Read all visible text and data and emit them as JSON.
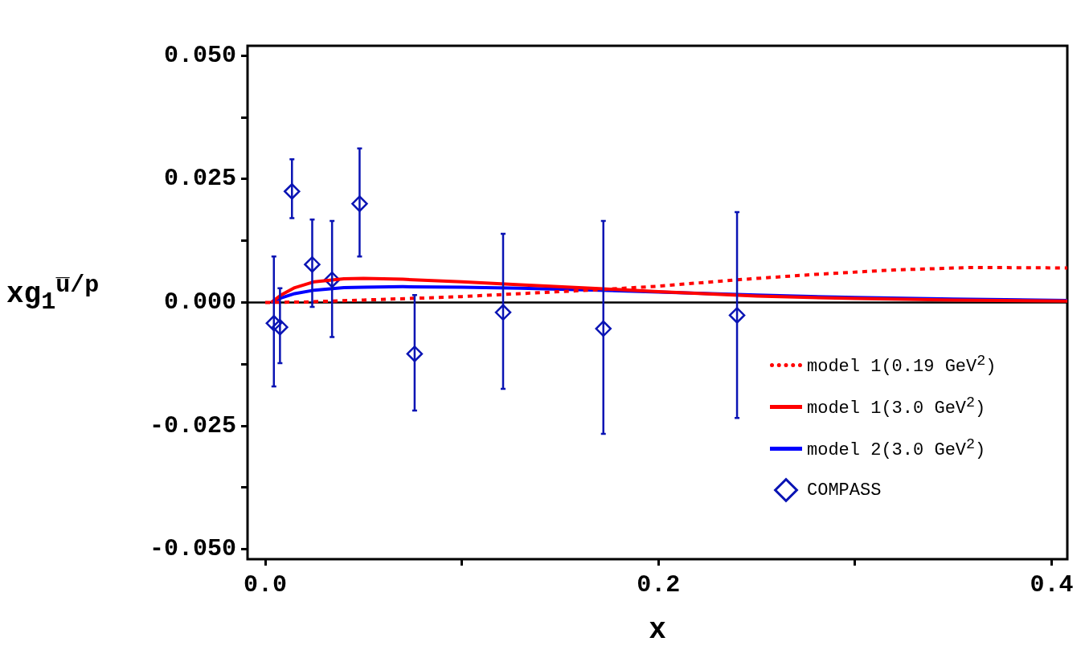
{
  "chart_data": {
    "type": "line",
    "xlabel": "x",
    "ylabel": "xg$_{1}$$^{u̅/p}$",
    "xlim": [
      -0.009,
      0.408
    ],
    "ylim": [
      -0.052,
      0.052
    ],
    "xticks": [
      {
        "value": 0,
        "label": "0.0"
      },
      {
        "value": 0.1,
        "label": null
      },
      {
        "value": 0.2,
        "label": "0.2"
      },
      {
        "value": 0.3,
        "label": null
      },
      {
        "value": 0.4,
        "label": "0.4"
      }
    ],
    "yticks": [
      {
        "value": -0.05,
        "label": "-0.050"
      },
      {
        "value": -0.0375,
        "label": null
      },
      {
        "value": -0.025,
        "label": "-0.025"
      },
      {
        "value": -0.0125,
        "label": null
      },
      {
        "value": 0,
        "label": "0.000"
      },
      {
        "value": 0.0125,
        "label": null
      },
      {
        "value": 0.025,
        "label": "0.025"
      },
      {
        "value": 0.0375,
        "label": null
      },
      {
        "value": 0.05,
        "label": "0.050"
      }
    ],
    "grid": false,
    "legend": "bottom right",
    "ref_lines": [
      {
        "axis": "y",
        "value": 0,
        "color": "#000000"
      }
    ],
    "series": [
      {
        "name": "model 1(0.19 GeV$^{2}$)",
        "color": "#ff0000",
        "line_style": "dotted",
        "marker": "none",
        "x": [
          0,
          0.02,
          0.05,
          0.08,
          0.1,
          0.13,
          0.17,
          0.2,
          0.24,
          0.28,
          0.32,
          0.36,
          0.408
        ],
        "values": [
          0,
          0.0001,
          0.0005,
          0.0009,
          0.0012,
          0.0018,
          0.0026,
          0.0033,
          0.0046,
          0.0057,
          0.0066,
          0.0071,
          0.007
        ]
      },
      {
        "name": "model 1(3.0 GeV$^{2}$)",
        "color": "#ff0000",
        "line_style": "solid",
        "marker": "none",
        "x": [
          0.003,
          0.008,
          0.015,
          0.025,
          0.04,
          0.05,
          0.07,
          0.1,
          0.13,
          0.17,
          0.2,
          0.25,
          0.3,
          0.35,
          0.408
        ],
        "values": [
          0,
          0.0015,
          0.003,
          0.0042,
          0.0048,
          0.0049,
          0.0047,
          0.0042,
          0.0036,
          0.0028,
          0.0022,
          0.0013,
          0.0008,
          0.0005,
          0.0003
        ]
      },
      {
        "name": "model 2(3.0 GeV$^{2}$)",
        "color": "#0000ff",
        "line_style": "solid",
        "marker": "none",
        "x": [
          0.003,
          0.008,
          0.015,
          0.025,
          0.04,
          0.05,
          0.07,
          0.1,
          0.13,
          0.17,
          0.2,
          0.25,
          0.3,
          0.35,
          0.408
        ],
        "values": [
          0,
          0.0009,
          0.0018,
          0.0025,
          0.003,
          0.0031,
          0.0032,
          0.0031,
          0.0029,
          0.0025,
          0.0021,
          0.0015,
          0.001,
          0.0007,
          0.0004
        ]
      },
      {
        "name": "COMPASS",
        "type": "scatter",
        "color": "#0a14b4",
        "marker": "diamond",
        "x": [
          0.0044,
          0.0075,
          0.0136,
          0.0239,
          0.034,
          0.048,
          0.076,
          0.121,
          0.172,
          0.24
        ],
        "values": [
          -0.0042,
          -0.005,
          0.0225,
          0.0077,
          0.0046,
          0.02,
          -0.0104,
          -0.002,
          -0.0053,
          -0.0026
        ],
        "errors": [
          [
            -0.017,
            0.0093
          ],
          [
            -0.0123,
            0.0029
          ],
          [
            0.0171,
            0.029
          ],
          [
            -0.0009,
            0.0168
          ],
          [
            -0.007,
            0.0165
          ],
          [
            0.0093,
            0.0312
          ],
          [
            -0.0219,
            0.0015
          ],
          [
            -0.0175,
            0.0139
          ],
          [
            -0.0266,
            0.0165
          ],
          [
            -0.0234,
            0.0183
          ]
        ]
      }
    ]
  }
}
